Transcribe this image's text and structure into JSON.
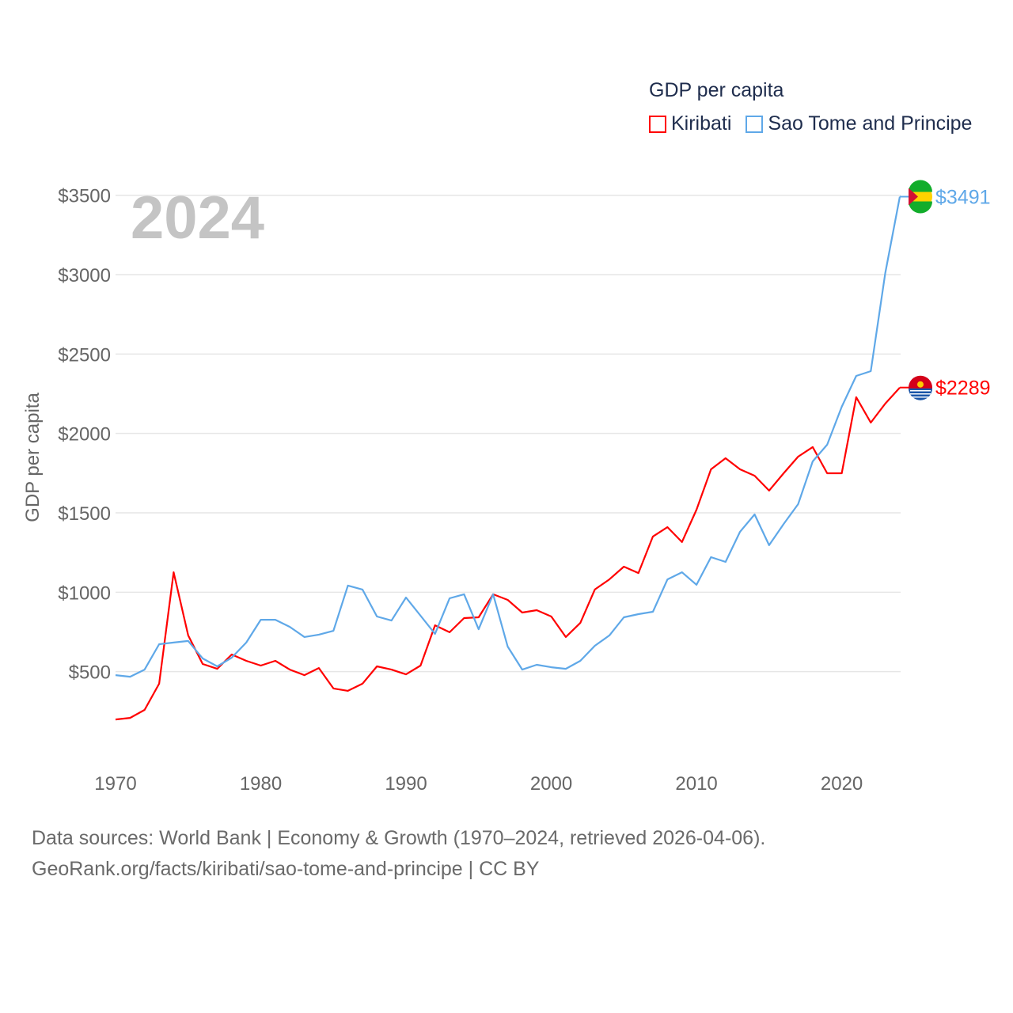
{
  "chart_data": {
    "type": "line",
    "title": "GDP per capita",
    "ylabel": "GDP per capita",
    "xlabel": "",
    "current_year": "2024",
    "xlim": [
      1970,
      2024
    ],
    "ylim": [
      0,
      3500
    ],
    "x_ticks": [
      1970,
      1980,
      1990,
      2000,
      2010,
      2020
    ],
    "y_ticks": [
      500,
      1000,
      1500,
      2000,
      2500,
      3000,
      3500
    ],
    "y_tick_labels": [
      "$500",
      "$1000",
      "$1500",
      "$2000",
      "$2500",
      "$3000",
      "$3500"
    ],
    "grid": true,
    "legend_position": "top-right",
    "x": [
      1970,
      1971,
      1972,
      1973,
      1974,
      1975,
      1976,
      1977,
      1978,
      1979,
      1980,
      1981,
      1982,
      1983,
      1984,
      1985,
      1986,
      1987,
      1988,
      1989,
      1990,
      1991,
      1992,
      1993,
      1994,
      1995,
      1996,
      1997,
      1998,
      1999,
      2000,
      2001,
      2002,
      2003,
      2004,
      2005,
      2006,
      2007,
      2008,
      2009,
      2010,
      2011,
      2012,
      2013,
      2014,
      2015,
      2016,
      2017,
      2018,
      2019,
      2020,
      2021,
      2022,
      2023,
      2024
    ],
    "series": [
      {
        "name": "Kiribati",
        "color": "#ff0000",
        "end_label": "$2289",
        "values": [
          199,
          209,
          259,
          424,
          1126,
          728,
          548,
          518,
          608,
          568,
          538,
          568,
          513,
          478,
          523,
          394,
          379,
          424,
          533,
          513,
          483,
          538,
          792,
          748,
          837,
          842,
          987,
          952,
          872,
          887,
          847,
          718,
          807,
          1017,
          1081,
          1161,
          1121,
          1351,
          1410,
          1316,
          1520,
          1774,
          1844,
          1774,
          1734,
          1640,
          1749,
          1854,
          1914,
          1749,
          1749,
          2228,
          2068,
          2188,
          2289
        ]
      },
      {
        "name": "Sao Tome and Principe",
        "color": "#5fa8e8",
        "end_label": "$3491",
        "values": [
          478,
          468,
          513,
          673,
          683,
          693,
          583,
          533,
          588,
          683,
          827,
          827,
          782,
          718,
          733,
          757,
          1042,
          1017,
          847,
          822,
          967,
          852,
          738,
          962,
          987,
          767,
          987,
          658,
          513,
          543,
          528,
          518,
          568,
          663,
          728,
          842,
          862,
          877,
          1081,
          1126,
          1047,
          1221,
          1191,
          1381,
          1490,
          1296,
          1430,
          1555,
          1824,
          1929,
          2168,
          2362,
          2392,
          3010,
          3491
        ]
      }
    ]
  },
  "footer": {
    "line1": "Data sources: World Bank | Economy & Growth (1970–2024, retrieved 2026-04-06).",
    "line2": "GeoRank.org/facts/kiribati/sao-tome-and-principe | CC BY"
  }
}
